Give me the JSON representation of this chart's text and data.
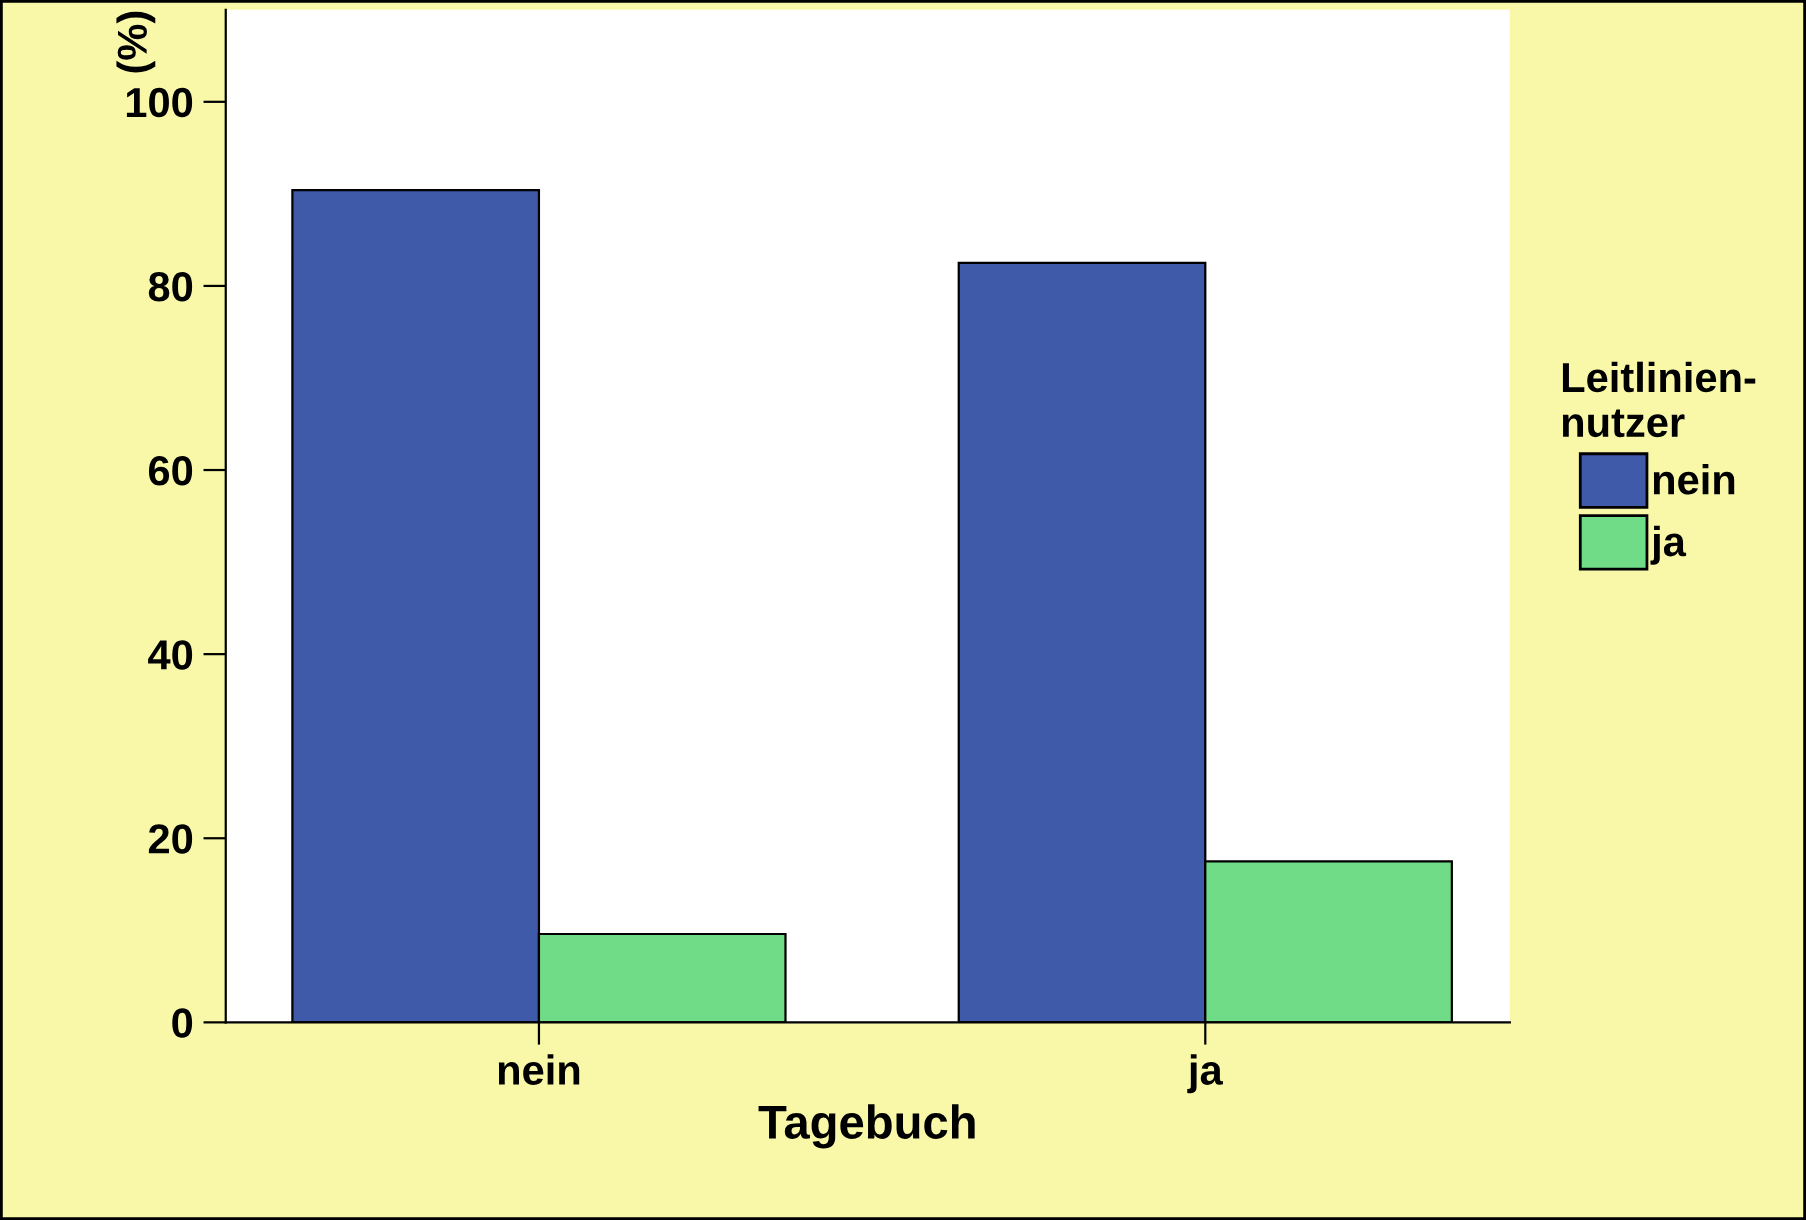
{
  "chart_data": {
    "type": "bar",
    "xlabel": "Tagebuch",
    "ylabel": "(%)",
    "legend_title": "Leitlinien-\nnutzer",
    "categories": [
      "nein",
      "ja"
    ],
    "series": [
      {
        "name": "nein",
        "color": "#3e5aa9",
        "values": [
          90.4,
          82.5
        ]
      },
      {
        "name": "ja",
        "color": "#70dc88",
        "values": [
          9.6,
          17.5
        ]
      }
    ],
    "ylim": [
      0,
      110
    ],
    "yticks": [
      0,
      20,
      40,
      60,
      80,
      100
    ],
    "grid": false,
    "legend": "right"
  }
}
